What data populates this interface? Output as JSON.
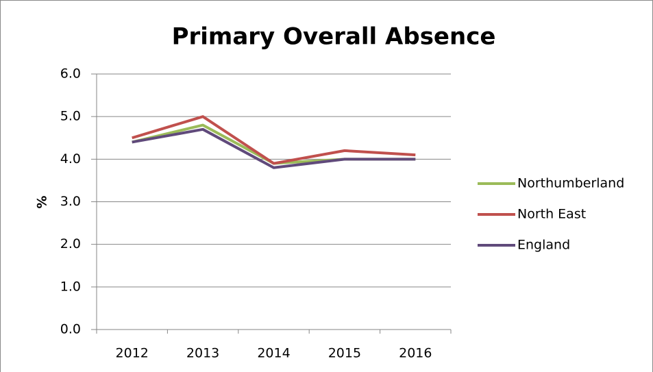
{
  "chart_data": {
    "type": "line",
    "title": "Primary Overall Absence",
    "y_label": "%",
    "categories": [
      "2012",
      "2013",
      "2014",
      "2015",
      "2016"
    ],
    "series": [
      {
        "name": "Northumberland",
        "color": "#9bbb59",
        "values": [
          4.4,
          4.8,
          3.9,
          4.0,
          4.0
        ]
      },
      {
        "name": "North East",
        "color": "#c0504d",
        "values": [
          4.5,
          5.0,
          3.9,
          4.2,
          4.1
        ]
      },
      {
        "name": "England",
        "color": "#604a7b",
        "values": [
          4.4,
          4.7,
          3.8,
          4.0,
          4.0
        ]
      }
    ],
    "ylim": [
      0,
      6
    ],
    "yticks": [
      {
        "value": 0,
        "label": "0.0"
      },
      {
        "value": 1,
        "label": "1.0"
      },
      {
        "value": 2,
        "label": "2.0"
      },
      {
        "value": 3,
        "label": "3.0"
      },
      {
        "value": 4,
        "label": "4.0"
      },
      {
        "value": 5,
        "label": "5.0"
      },
      {
        "value": 6,
        "label": "6.0"
      }
    ],
    "grid": true,
    "legend": "right"
  }
}
